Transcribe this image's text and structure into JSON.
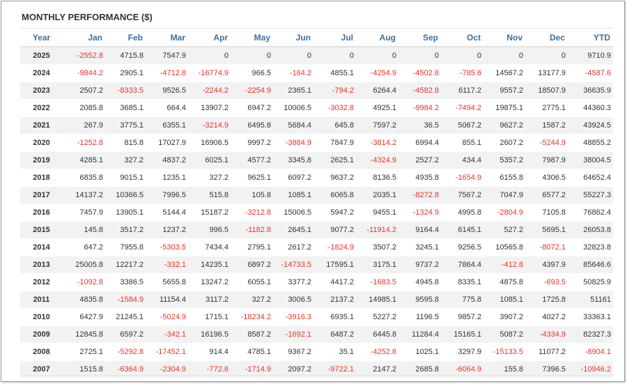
{
  "title": "MONTHLY PERFORMANCE ($)",
  "colors": {
    "header_text": "#3a6ea5",
    "negative": "#e8332a",
    "text": "#333333",
    "stripe": "#f2f2f2"
  },
  "columns": [
    "Year",
    "Jan",
    "Feb",
    "Mar",
    "Apr",
    "May",
    "Jun",
    "Jul",
    "Aug",
    "Sep",
    "Oct",
    "Nov",
    "Dec",
    "YTD"
  ],
  "rows": [
    [
      "2025",
      "-2552.8",
      "4715.8",
      "7547.9",
      "0",
      "0",
      "0",
      "0",
      "0",
      "0",
      "0",
      "0",
      "0",
      "9710.9"
    ],
    [
      "2024",
      "-9844.2",
      "2905.1",
      "-4712.8",
      "-16774.9",
      "966.5",
      "-184.2",
      "4855.1",
      "-4254.9",
      "-4502.8",
      "-785.6",
      "14567.2",
      "13177.9",
      "-4587.6"
    ],
    [
      "2023",
      "2507.2",
      "-8333.5",
      "9526.5",
      "-2244.2",
      "-2254.9",
      "2365.1",
      "-794.2",
      "6264.4",
      "-4582.8",
      "6117.2",
      "9557.2",
      "18507.9",
      "36635.9"
    ],
    [
      "2022",
      "2085.8",
      "3685.1",
      "664.4",
      "13907.2",
      "6947.2",
      "10006.5",
      "-3032.8",
      "4925.1",
      "-9984.2",
      "-7494.2",
      "19875.1",
      "2775.1",
      "44360.3"
    ],
    [
      "2021",
      "267.9",
      "3775.1",
      "6355.1",
      "-3214.9",
      "6495.8",
      "5684.4",
      "645.8",
      "7597.2",
      "36.5",
      "5067.2",
      "9627.2",
      "1587.2",
      "43924.5"
    ],
    [
      "2020",
      "-1252.8",
      "815.8",
      "17027.9",
      "16906.5",
      "9997.2",
      "-3884.9",
      "7847.9",
      "-3814.2",
      "6994.4",
      "855.1",
      "2607.2",
      "-5244.9",
      "48855.2"
    ],
    [
      "2019",
      "4285.1",
      "327.2",
      "4837.2",
      "6025.1",
      "4577.2",
      "3345.8",
      "2625.1",
      "-4324.9",
      "2527.2",
      "434.4",
      "5357.2",
      "7987.9",
      "38004.5"
    ],
    [
      "2018",
      "6835.8",
      "9015.1",
      "1235.1",
      "327.2",
      "9625.1",
      "6097.2",
      "9637.2",
      "8136.5",
      "4935.8",
      "-1654.9",
      "6155.8",
      "4306.5",
      "64652.4"
    ],
    [
      "2017",
      "14137.2",
      "10366.5",
      "7996.5",
      "515.8",
      "105.8",
      "1085.1",
      "6065.8",
      "2035.1",
      "-8272.8",
      "7567.2",
      "7047.9",
      "6577.2",
      "55227.3"
    ],
    [
      "2016",
      "7457.9",
      "13905.1",
      "5144.4",
      "15187.2",
      "-3212.8",
      "15006.5",
      "5947.2",
      "9455.1",
      "-1324.9",
      "4995.8",
      "-2804.9",
      "7105.8",
      "76862.4"
    ],
    [
      "2015",
      "145.8",
      "3517.2",
      "1237.2",
      "996.5",
      "-1182.8",
      "2645.1",
      "9077.2",
      "-11914.2",
      "9164.4",
      "6145.1",
      "527.2",
      "5695.1",
      "26053.8"
    ],
    [
      "2014",
      "647.2",
      "7955.8",
      "-5303.5",
      "7434.4",
      "2795.1",
      "2617.2",
      "-1824.9",
      "3507.2",
      "3245.1",
      "9256.5",
      "10565.8",
      "-8072.1",
      "32823.8"
    ],
    [
      "2013",
      "25005.8",
      "12217.2",
      "-332.1",
      "14235.1",
      "6897.2",
      "-14733.5",
      "17595.1",
      "3175.1",
      "9737.2",
      "7864.4",
      "-412.8",
      "4397.9",
      "85646.6"
    ],
    [
      "2012",
      "-1092.8",
      "3386.5",
      "5655.8",
      "13247.2",
      "6055.1",
      "3377.2",
      "4417.2",
      "-1683.5",
      "4945.8",
      "8335.1",
      "4875.8",
      "-693.5",
      "50825.9"
    ],
    [
      "2011",
      "4835.8",
      "-1584.9",
      "11154.4",
      "3117.2",
      "327.2",
      "3006.5",
      "2137.2",
      "14985.1",
      "9595.8",
      "775.8",
      "1085.1",
      "1725.8",
      "51161"
    ],
    [
      "2010",
      "6427.9",
      "21245.1",
      "-5024.9",
      "1715.1",
      "-18234.2",
      "-3916.3",
      "6935.1",
      "5227.2",
      "1196.5",
      "9857.2",
      "3907.2",
      "4027.2",
      "33363.1"
    ],
    [
      "2009",
      "12845.8",
      "6597.2",
      "-342.1",
      "16196.5",
      "8587.2",
      "-1692.1",
      "6487.2",
      "6445.8",
      "11284.4",
      "15165.1",
      "5087.2",
      "-4334.9",
      "82327.3"
    ],
    [
      "2008",
      "2725.1",
      "-5292.8",
      "-17452.1",
      "914.4",
      "4785.1",
      "9367.2",
      "35.1",
      "-4252.8",
      "1025.1",
      "3297.9",
      "-15133.5",
      "11077.2",
      "-8904.1"
    ],
    [
      "2007",
      "1515.8",
      "-6364.9",
      "-2304.9",
      "-772.8",
      "-1714.9",
      "2097.2",
      "-9722.1",
      "2147.2",
      "2685.8",
      "-6064.9",
      "155.8",
      "7396.5",
      "-10946.2"
    ]
  ]
}
